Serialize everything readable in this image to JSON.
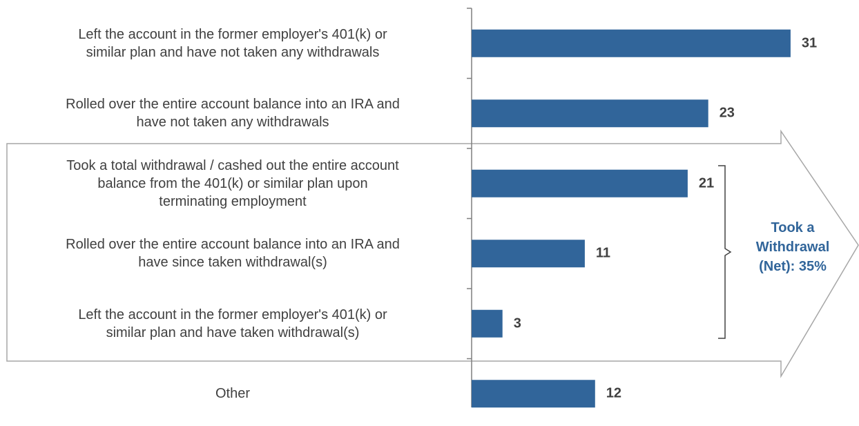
{
  "chart_data": {
    "type": "barh",
    "categories": [
      "Left the account in the former employer's 401(k) or\nsimilar plan and have not taken any withdrawals",
      "Rolled over the entire account balance into an IRA and\nhave not taken any withdrawals",
      "Took a total withdrawal / cashed out the entire account\nbalance from the 401(k) or similar plan upon\nterminating employment",
      "Rolled over the entire account balance into an IRA and\nhave since taken withdrawal(s)",
      "Left the account in the former employer's 401(k) or\nsimilar plan and have taken withdrawal(s)",
      "Other"
    ],
    "values": [
      31,
      23,
      21,
      11,
      3,
      12
    ],
    "color": "#31659a",
    "annotation": "Took a\nWithdrawal\n(Net): 35%"
  }
}
